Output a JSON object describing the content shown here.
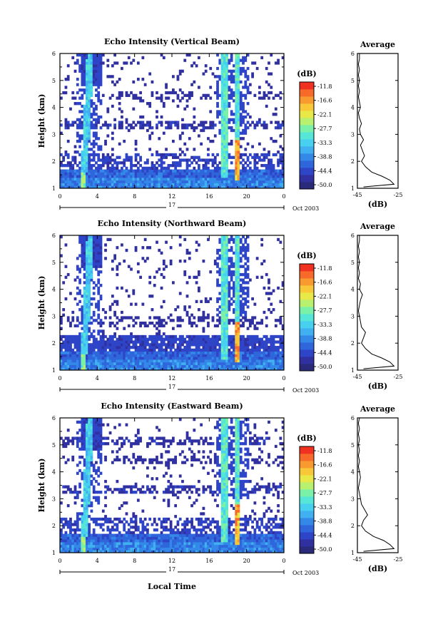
{
  "date_label": "Oct 2003",
  "xlabel_bottom": "Local Time",
  "colorbar": {
    "label": "(dB)",
    "ticks": [
      "-11.8",
      "-16.6",
      "-22.1",
      "-27.7",
      "-33.3",
      "-38.8",
      "-44.4",
      "-50.0"
    ],
    "colors": [
      "#2a2a7a",
      "#3030a0",
      "#2f45c8",
      "#2f66dc",
      "#3388e8",
      "#40b0f0",
      "#48d0f0",
      "#55e6d8",
      "#7af0a8",
      "#b8f070",
      "#e8e848",
      "#f8c838",
      "#f89a30",
      "#f86a2a",
      "#f03020"
    ]
  },
  "chart_data": [
    {
      "type": "heatmap",
      "title": "Echo Intensity (Vertical Beam)",
      "ylabel": "Height (km)",
      "ylim": [
        1,
        6
      ],
      "yticks": [
        "1",
        "2",
        "3",
        "4",
        "5",
        "6"
      ],
      "xlim": [
        0,
        24
      ],
      "xticks": [
        "0",
        "4",
        "8",
        "12",
        "16",
        "20",
        "0"
      ],
      "day_label": "17",
      "profile": {
        "title": "Average",
        "xlabel": "(dB)",
        "xticks": [
          "-45",
          "-25"
        ],
        "xlim": [
          -45,
          -25
        ],
        "yticks": [
          "1",
          "2",
          "3",
          "4",
          "5",
          "6"
        ],
        "ylim": [
          1,
          6
        ],
        "height": [
          1.05,
          1.15,
          1.3,
          1.45,
          1.6,
          1.8,
          2.0,
          2.2,
          2.4,
          2.6,
          2.8,
          3.0,
          3.2,
          3.4,
          3.6,
          3.8,
          4.0,
          4.2,
          4.4,
          4.6,
          4.8,
          5.0,
          5.2,
          5.4,
          5.6,
          5.8,
          6.0
        ],
        "intensity": [
          -42,
          -27,
          -29,
          -33,
          -38,
          -41,
          -43,
          -41.5,
          -42.5,
          -43.5,
          -42,
          -43.5,
          -44,
          -43,
          -44,
          -44.5,
          -43.5,
          -44,
          -44.5,
          -44,
          -44.5,
          -44,
          -44.5,
          -44,
          -44.5,
          -44,
          -44
        ]
      }
    },
    {
      "type": "heatmap",
      "title": "Echo Intensity (Northward Beam)",
      "ylabel": "Height (km)",
      "ylim": [
        1,
        6
      ],
      "yticks": [
        "1",
        "2",
        "3",
        "4",
        "5",
        "6"
      ],
      "xlim": [
        0,
        24
      ],
      "xticks": [
        "0",
        "4",
        "8",
        "12",
        "16",
        "20",
        "0"
      ],
      "day_label": "17",
      "profile": {
        "title": "Average",
        "xlabel": "(dB)",
        "xticks": [
          "-45",
          "-25"
        ],
        "xlim": [
          -45,
          -25
        ],
        "yticks": [
          "1",
          "2",
          "3",
          "4",
          "5",
          "6"
        ],
        "ylim": [
          1,
          6
        ],
        "height": [
          1.05,
          1.15,
          1.3,
          1.45,
          1.6,
          1.8,
          2.0,
          2.2,
          2.4,
          2.6,
          2.8,
          3.0,
          3.2,
          3.4,
          3.6,
          3.8,
          4.0,
          4.2,
          4.4,
          4.6,
          4.8,
          5.0,
          5.2,
          5.4,
          5.6,
          5.8,
          6.0
        ],
        "intensity": [
          -42,
          -27,
          -29,
          -33,
          -38,
          -41,
          -43,
          -42,
          -41,
          -43,
          -43.5,
          -44,
          -44.5,
          -44,
          -43.5,
          -42.5,
          -44,
          -43.5,
          -44.5,
          -44,
          -44.5,
          -44,
          -44.5,
          -44,
          -44.5,
          -44,
          -44
        ]
      }
    },
    {
      "type": "heatmap",
      "title": "Echo Intensity (Eastward Beam)",
      "ylabel": "Height (km)",
      "ylim": [
        1,
        6
      ],
      "yticks": [
        "1",
        "2",
        "3",
        "4",
        "5",
        "6"
      ],
      "xlim": [
        0,
        24
      ],
      "xticks": [
        "0",
        "4",
        "8",
        "12",
        "16",
        "20",
        "0"
      ],
      "day_label": "17",
      "profile": {
        "title": "Average",
        "xlabel": "(dB)",
        "xticks": [
          "-45",
          "-25"
        ],
        "xlim": [
          -45,
          -25
        ],
        "yticks": [
          "1",
          "2",
          "3",
          "4",
          "5",
          "6"
        ],
        "ylim": [
          1,
          6
        ],
        "height": [
          1.05,
          1.15,
          1.3,
          1.45,
          1.6,
          1.8,
          2.0,
          2.2,
          2.4,
          2.6,
          2.8,
          3.0,
          3.2,
          3.4,
          3.6,
          3.8,
          4.0,
          4.2,
          4.4,
          4.6,
          4.8,
          5.0,
          5.2,
          5.4,
          5.6,
          5.8,
          6.0
        ],
        "intensity": [
          -42,
          -27,
          -29,
          -32,
          -37,
          -41,
          -43,
          -42,
          -40,
          -41.5,
          -43,
          -43.5,
          -44,
          -44.5,
          -44,
          -43.5,
          -44,
          -44.5,
          -44,
          -44.5,
          -44,
          -44.5,
          -44,
          -44.5,
          -44,
          -44.5,
          -44
        ]
      }
    }
  ]
}
